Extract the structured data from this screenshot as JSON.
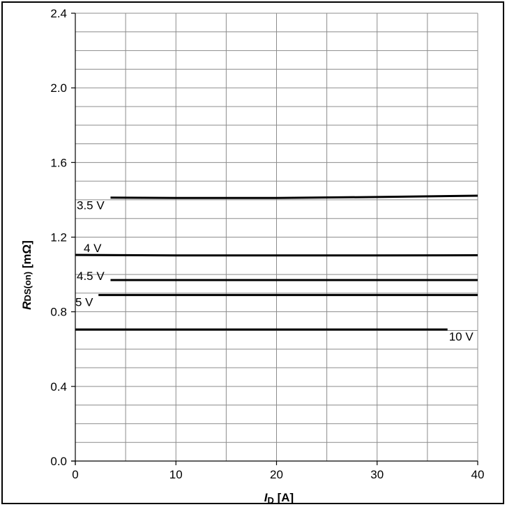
{
  "chart_data": {
    "type": "line",
    "xlim": [
      0,
      40
    ],
    "ylim": [
      0.0,
      2.4
    ],
    "x_ticks": [
      0,
      10,
      20,
      30,
      40
    ],
    "x_tick_labels": [
      "0",
      "10",
      "20",
      "30",
      "40"
    ],
    "y_ticks": [
      0.0,
      0.4,
      0.8,
      1.2,
      1.6,
      2.0,
      2.4
    ],
    "y_tick_labels": [
      "0.0",
      "0.4",
      "0.8",
      "1.2",
      "1.6",
      "2.0",
      "2.4"
    ],
    "grid": true,
    "xlabel": {
      "main": "I",
      "sub": "D",
      "unit": " [A]"
    },
    "ylabel": {
      "main": "R",
      "sub": "DS(on)",
      "unit": "  [mΩ]"
    },
    "series": [
      {
        "name": "3.5 V",
        "color": "#000000",
        "x": [
          3.5,
          10,
          20,
          30,
          40
        ],
        "y": [
          1.412,
          1.41,
          1.41,
          1.415,
          1.422
        ]
      },
      {
        "name": "4 V",
        "color": "#000000",
        "x": [
          0,
          10,
          20,
          30,
          40
        ],
        "y": [
          1.105,
          1.102,
          1.102,
          1.102,
          1.103
        ]
      },
      {
        "name": "4.5 V",
        "color": "#000000",
        "x": [
          3.5,
          10,
          20,
          30,
          40
        ],
        "y": [
          0.97,
          0.97,
          0.97,
          0.97,
          0.97
        ]
      },
      {
        "name": "5 V",
        "color": "#000000",
        "x": [
          2.3,
          10,
          20,
          30,
          40
        ],
        "y": [
          0.89,
          0.89,
          0.89,
          0.89,
          0.89
        ]
      },
      {
        "name": "10 V",
        "color": "#000000",
        "x": [
          0,
          10,
          20,
          30,
          37
        ],
        "y": [
          0.705,
          0.705,
          0.705,
          0.705,
          0.705
        ]
      }
    ]
  }
}
